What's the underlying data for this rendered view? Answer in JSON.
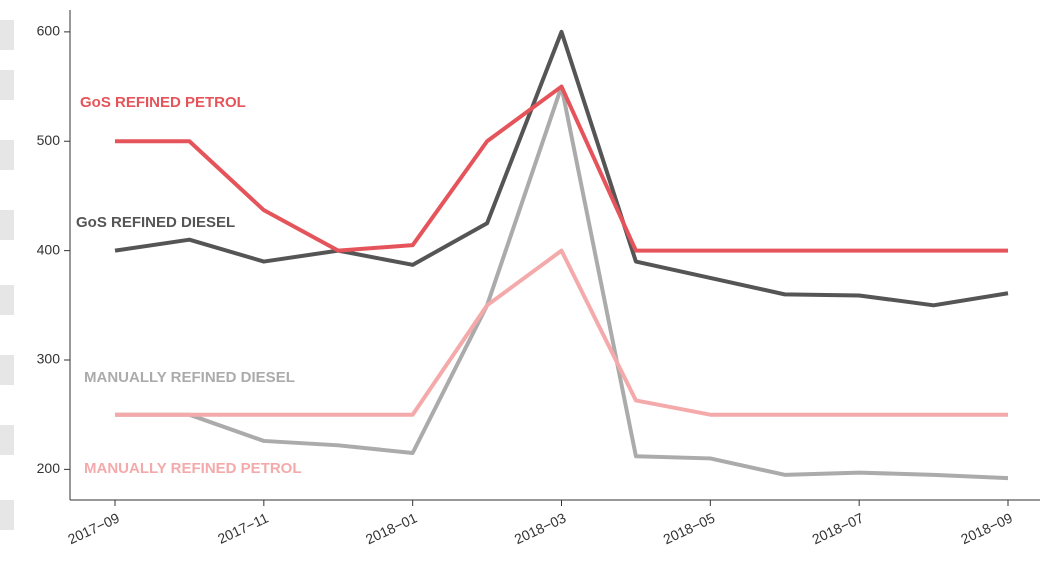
{
  "chart_data": {
    "type": "line",
    "categories": [
      "2017−09",
      null,
      "2017−11",
      null,
      "2018−01",
      null,
      "2018−03",
      null,
      "2018−05",
      null,
      "2018−07",
      null,
      "2018−09"
    ],
    "series": [
      {
        "name": "GoS REFINED PETROL",
        "color": "#e5545a",
        "values": [
          500,
          500,
          437,
          400,
          405,
          500,
          550,
          400,
          400,
          400,
          400,
          400,
          400
        ]
      },
      {
        "name": "GoS REFINED DIESEL",
        "color": "#555555",
        "values": [
          400,
          410,
          390,
          400,
          387,
          425,
          600,
          390,
          375,
          360,
          359,
          350,
          361
        ]
      },
      {
        "name": "MANUALLY REFINED DIESEL",
        "color": "#ababab",
        "values": [
          250,
          250,
          226,
          222,
          215,
          350,
          550,
          212,
          210,
          195,
          197,
          195,
          192
        ]
      },
      {
        "name": "MANUALLY REFINED PETROL",
        "color": "#f4aaaa",
        "values": [
          250,
          250,
          250,
          250,
          250,
          350,
          400,
          263,
          250,
          250,
          250,
          250,
          250
        ]
      }
    ],
    "ylim": [
      172,
      620
    ],
    "yticks": [
      200,
      300,
      400,
      500,
      600
    ]
  }
}
